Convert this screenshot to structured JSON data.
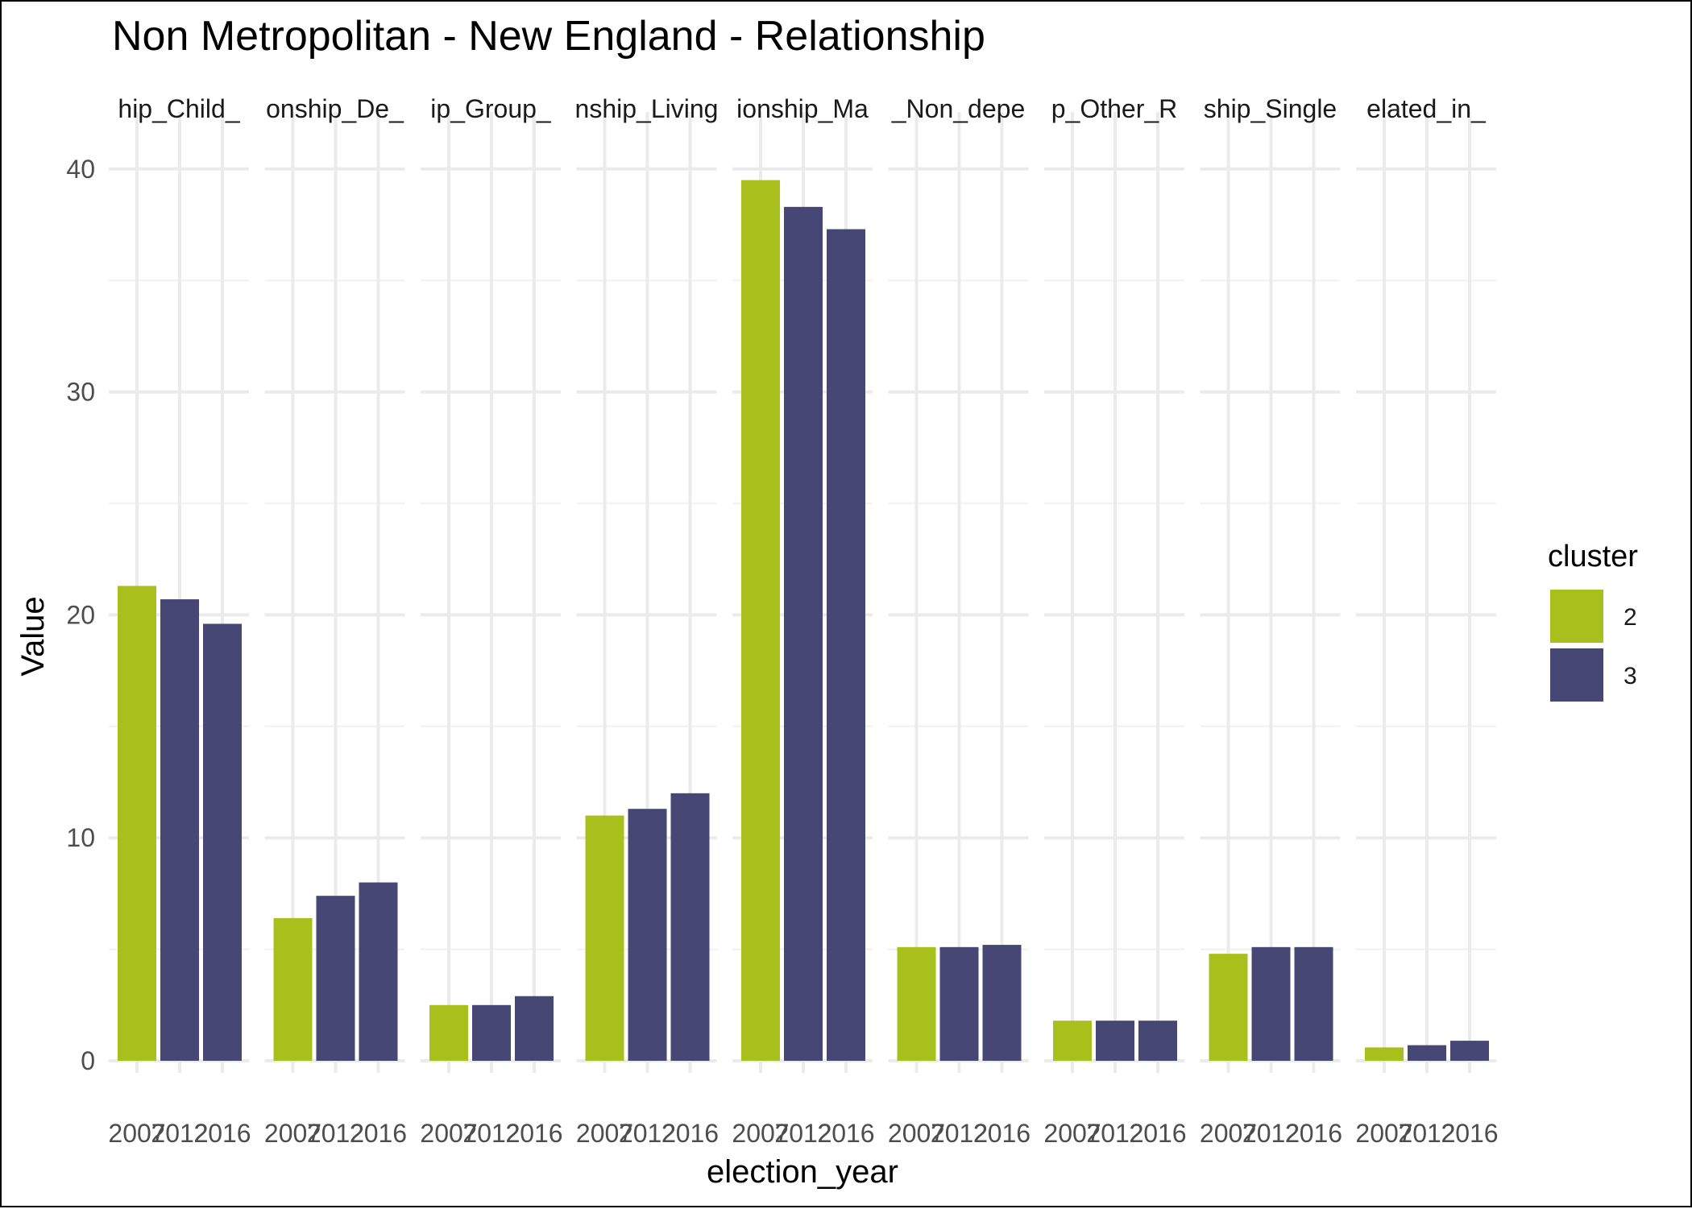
{
  "chart_data": {
    "type": "bar",
    "title": "Non Metropolitan - New England - Relationship",
    "xlabel": "election_year",
    "ylabel": "Value",
    "ylim": [
      0,
      41.5
    ],
    "y_ticks": [
      0,
      10,
      20,
      30,
      40
    ],
    "grid": true,
    "legend_position": "right",
    "legend": {
      "title": "cluster",
      "items": [
        {
          "label": "2",
          "color": "#a8c01b"
        },
        {
          "label": "3",
          "color": "#464775"
        }
      ]
    },
    "categories": [
      "2007",
      "2012",
      "2016"
    ],
    "bar_clusters": [
      "2",
      "3",
      "3"
    ],
    "facets": [
      {
        "strip": "hip_Child_",
        "values": [
          21.3,
          20.7,
          19.6
        ]
      },
      {
        "strip": "onship_De_",
        "values": [
          6.4,
          7.4,
          8.0
        ]
      },
      {
        "strip": "ip_Group_",
        "values": [
          2.5,
          2.5,
          2.9
        ]
      },
      {
        "strip": "nship_Living",
        "values": [
          11.0,
          11.3,
          12.0
        ]
      },
      {
        "strip": "ionship_Ma",
        "values": [
          39.5,
          38.3,
          37.3
        ]
      },
      {
        "strip": "_Non_depe",
        "values": [
          5.1,
          5.1,
          5.2
        ]
      },
      {
        "strip": "p_Other_R",
        "values": [
          1.8,
          1.8,
          1.8
        ]
      },
      {
        "strip": "ship_Single",
        "values": [
          4.8,
          5.1,
          5.1
        ]
      },
      {
        "strip": "elated_in_",
        "values": [
          0.6,
          0.7,
          0.9
        ]
      }
    ]
  }
}
